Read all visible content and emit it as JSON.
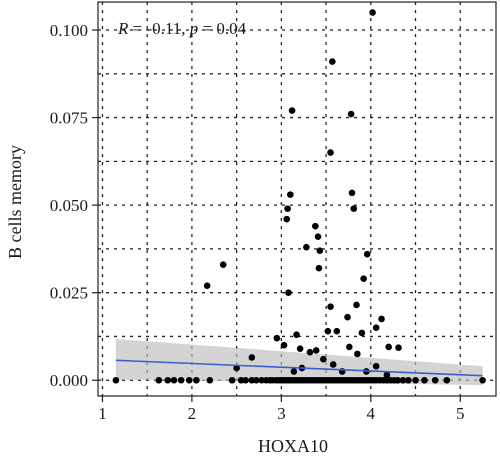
{
  "chart_data": {
    "type": "scatter",
    "xlabel": "HOXA10",
    "ylabel": "B cells memory",
    "annotation": {
      "r_symbol": "R",
      "r_text": " = -0.11, ",
      "p_symbol": "p",
      "p_text": " = 0.04"
    },
    "xlim": [
      0.95,
      5.4
    ],
    "ylim": [
      -0.0045,
      0.108
    ],
    "x_ticks": [
      1,
      2,
      3,
      4,
      5
    ],
    "x_tick_labels": [
      "1",
      "2",
      "3",
      "4",
      "5"
    ],
    "y_ticks": [
      0.0,
      0.025,
      0.05,
      0.075,
      0.1
    ],
    "y_tick_labels": [
      "0.000",
      "0.025",
      "0.050",
      "0.075",
      "0.100"
    ],
    "grid": true,
    "grid_style": "dotted",
    "colors": {
      "points": "#000000",
      "fit_line": "#3a5fcd",
      "confidence_band": "#bdbdbd"
    },
    "fit": {
      "x": [
        1.15,
        5.25
      ],
      "y": [
        0.0057,
        0.0013
      ],
      "ci_lower": [
        0.0002,
        -0.0014
      ],
      "ci_upper": [
        0.0118,
        0.004
      ]
    },
    "points": [
      [
        4.02,
        0.105
      ],
      [
        3.57,
        0.091
      ],
      [
        3.12,
        0.077
      ],
      [
        3.78,
        0.076
      ],
      [
        3.55,
        0.065
      ],
      [
        3.1,
        0.053
      ],
      [
        3.79,
        0.0535
      ],
      [
        3.07,
        0.049
      ],
      [
        3.06,
        0.046
      ],
      [
        3.81,
        0.049
      ],
      [
        3.38,
        0.044
      ],
      [
        3.41,
        0.041
      ],
      [
        3.28,
        0.038
      ],
      [
        3.43,
        0.037
      ],
      [
        3.96,
        0.036
      ],
      [
        2.35,
        0.033
      ],
      [
        3.42,
        0.032
      ],
      [
        3.92,
        0.029
      ],
      [
        2.17,
        0.027
      ],
      [
        3.08,
        0.025
      ],
      [
        3.55,
        0.021
      ],
      [
        3.84,
        0.0215
      ],
      [
        4.12,
        0.0175
      ],
      [
        3.74,
        0.018
      ],
      [
        4.06,
        0.015
      ],
      [
        3.52,
        0.014
      ],
      [
        3.62,
        0.014
      ],
      [
        3.17,
        0.013
      ],
      [
        3.9,
        0.0135
      ],
      [
        2.95,
        0.012
      ],
      [
        3.03,
        0.01
      ],
      [
        3.21,
        0.009
      ],
      [
        3.32,
        0.008
      ],
      [
        3.39,
        0.0085
      ],
      [
        3.76,
        0.0095
      ],
      [
        4.2,
        0.0095
      ],
      [
        4.31,
        0.0093
      ],
      [
        3.85,
        0.0075
      ],
      [
        2.67,
        0.0065
      ],
      [
        3.47,
        0.006
      ],
      [
        2.5,
        0.0035
      ],
      [
        3.14,
        0.0025
      ],
      [
        3.58,
        0.0045
      ],
      [
        4.06,
        0.004
      ],
      [
        3.68,
        0.0025
      ],
      [
        3.95,
        0.0025
      ],
      [
        4.18,
        0.0015
      ],
      [
        3.23,
        0.0035
      ],
      [
        1.15,
        0.0
      ],
      [
        1.63,
        0.0
      ],
      [
        1.73,
        0.0
      ],
      [
        1.8,
        0.0
      ],
      [
        1.88,
        0.0
      ],
      [
        1.97,
        0.0
      ],
      [
        2.05,
        0.0
      ],
      [
        2.2,
        0.0
      ],
      [
        2.45,
        0.0
      ],
      [
        2.55,
        0.0
      ],
      [
        2.6,
        0.0
      ],
      [
        2.67,
        0.0
      ],
      [
        2.72,
        0.0
      ],
      [
        2.78,
        0.0
      ],
      [
        2.83,
        0.0
      ],
      [
        2.87,
        0.0
      ],
      [
        2.9,
        0.0
      ],
      [
        2.94,
        0.0
      ],
      [
        2.97,
        0.0
      ],
      [
        3.0,
        0.0
      ],
      [
        3.02,
        0.0
      ],
      [
        3.05,
        0.0
      ],
      [
        3.08,
        0.0
      ],
      [
        3.1,
        0.0
      ],
      [
        3.13,
        0.0
      ],
      [
        3.16,
        0.0
      ],
      [
        3.19,
        0.0
      ],
      [
        3.22,
        0.0
      ],
      [
        3.25,
        0.0
      ],
      [
        3.28,
        0.0
      ],
      [
        3.31,
        0.0
      ],
      [
        3.34,
        0.0
      ],
      [
        3.37,
        0.0
      ],
      [
        3.4,
        0.0
      ],
      [
        3.43,
        0.0
      ],
      [
        3.46,
        0.0
      ],
      [
        3.49,
        0.0
      ],
      [
        3.52,
        0.0
      ],
      [
        3.55,
        0.0
      ],
      [
        3.58,
        0.0
      ],
      [
        3.61,
        0.0
      ],
      [
        3.64,
        0.0
      ],
      [
        3.67,
        0.0
      ],
      [
        3.7,
        0.0
      ],
      [
        3.73,
        0.0
      ],
      [
        3.76,
        0.0
      ],
      [
        3.79,
        0.0
      ],
      [
        3.82,
        0.0
      ],
      [
        3.85,
        0.0
      ],
      [
        3.88,
        0.0
      ],
      [
        3.91,
        0.0
      ],
      [
        3.94,
        0.0
      ],
      [
        3.97,
        0.0
      ],
      [
        4.0,
        0.0
      ],
      [
        4.03,
        0.0
      ],
      [
        4.06,
        0.0
      ],
      [
        4.1,
        0.0
      ],
      [
        4.14,
        0.0
      ],
      [
        4.18,
        0.0
      ],
      [
        4.22,
        0.0
      ],
      [
        4.26,
        0.0
      ],
      [
        4.3,
        0.0
      ],
      [
        4.36,
        0.0
      ],
      [
        4.42,
        0.0
      ],
      [
        4.5,
        0.0
      ],
      [
        4.6,
        0.0
      ],
      [
        4.72,
        0.0
      ],
      [
        4.85,
        0.0
      ],
      [
        5.25,
        0.0
      ]
    ]
  }
}
